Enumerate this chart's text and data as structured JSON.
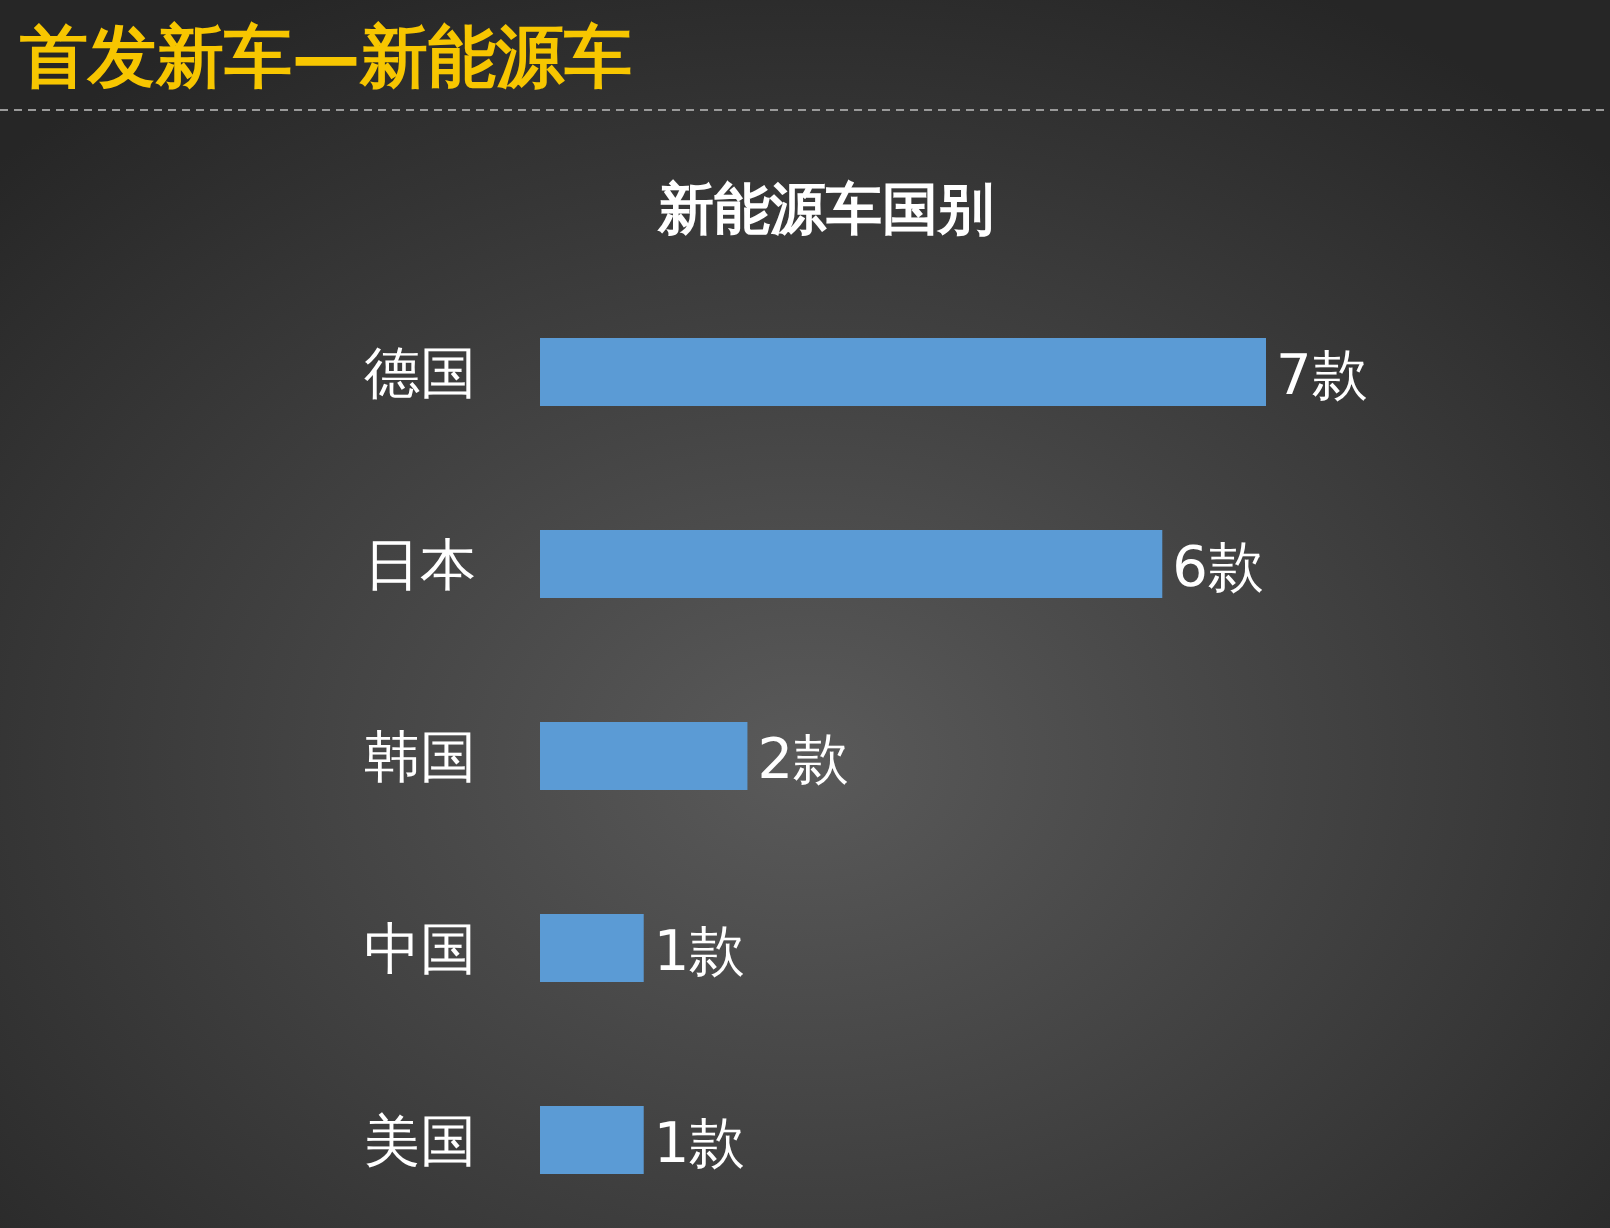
{
  "chart_data": {
    "type": "bar",
    "orientation": "horizontal",
    "title": "首发新车—新能源车",
    "subtitle": "新能源车国别",
    "categories": [
      "德国",
      "日本",
      "韩国",
      "中国",
      "美国"
    ],
    "values": [
      7,
      6,
      2,
      1,
      1
    ],
    "value_labels": [
      "7款",
      "6款",
      "2款",
      "1款",
      "1款"
    ],
    "color": "#5b9bd5"
  }
}
